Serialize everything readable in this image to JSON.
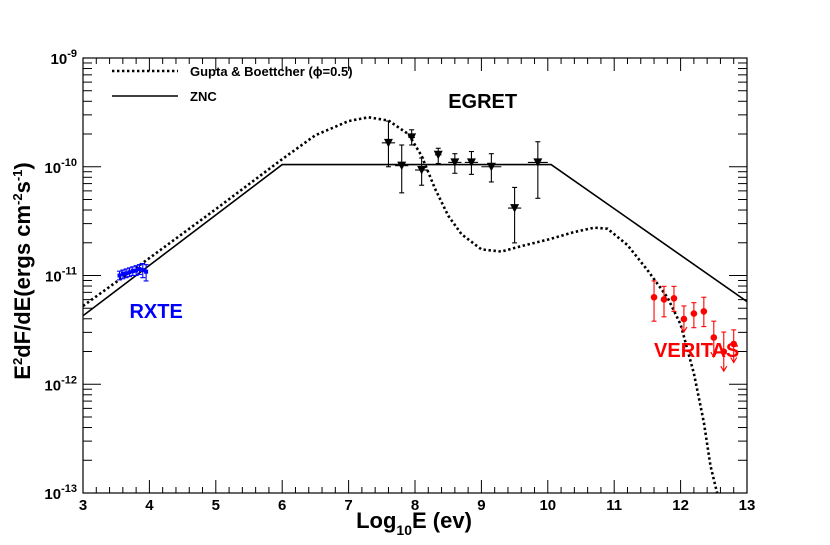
{
  "chart_data": {
    "type": "line",
    "title": "",
    "xlabel": {
      "base": "Log",
      "sub": "10",
      "rest": "E (ev)"
    },
    "ylabel": {
      "p1": "E",
      "sup1": "2",
      "p2": "dF/dE(ergs cm",
      "sup2": "-2",
      "p3": "s",
      "sup3": "-1",
      "p4": ")"
    },
    "xlim": [
      3,
      13
    ],
    "ylim_log10": [
      -13,
      -9
    ],
    "xticks": [
      3,
      4,
      5,
      6,
      7,
      8,
      9,
      10,
      11,
      12,
      13
    ],
    "xtick_labels": [
      "3",
      "4",
      "5",
      "6",
      "7",
      "8",
      "9",
      "10",
      "11",
      "12",
      "13"
    ],
    "yticks_log10": [
      -13,
      -12,
      -11,
      -10,
      -9
    ],
    "ytick_labels": [
      {
        "base": "10",
        "exp": "-13"
      },
      {
        "base": "10",
        "exp": "-12"
      },
      {
        "base": "10",
        "exp": "-11"
      },
      {
        "base": "10",
        "exp": "-10"
      },
      {
        "base": "10",
        "exp": "-9"
      }
    ],
    "legend": {
      "position": "top-left",
      "entries": [
        {
          "label": "Gupta & Boettcher (ϕ=0.5)",
          "style": "dotted"
        },
        {
          "label": "ZNC",
          "style": "solid"
        }
      ]
    },
    "series": [
      {
        "name": "Gupta & Boettcher (ϕ=0.5)",
        "style": "dotted",
        "color": "#000000",
        "points": [
          [
            3.0,
            -11.28
          ],
          [
            4.0,
            -10.84
          ],
          [
            5.0,
            -10.39
          ],
          [
            6.0,
            -9.93
          ],
          [
            6.5,
            -9.71
          ],
          [
            7.0,
            -9.58
          ],
          [
            7.3,
            -9.545
          ],
          [
            7.6,
            -9.575
          ],
          [
            7.9,
            -9.7
          ],
          [
            8.1,
            -9.9
          ],
          [
            8.3,
            -10.2
          ],
          [
            8.5,
            -10.45
          ],
          [
            8.7,
            -10.62
          ],
          [
            9.0,
            -10.76
          ],
          [
            9.3,
            -10.78
          ],
          [
            9.6,
            -10.73
          ],
          [
            10.0,
            -10.67
          ],
          [
            10.4,
            -10.6
          ],
          [
            10.7,
            -10.56
          ],
          [
            10.9,
            -10.57
          ],
          [
            11.2,
            -10.72
          ],
          [
            11.5,
            -10.95
          ],
          [
            11.8,
            -11.2
          ],
          [
            12.0,
            -11.45
          ],
          [
            12.2,
            -11.9
          ],
          [
            12.35,
            -12.35
          ],
          [
            12.45,
            -12.75
          ],
          [
            12.55,
            -13.0
          ]
        ]
      },
      {
        "name": "ZNC",
        "style": "solid",
        "color": "#000000",
        "points": [
          [
            3.0,
            -11.37
          ],
          [
            6.0,
            -9.98
          ],
          [
            10.05,
            -9.98
          ],
          [
            13.0,
            -11.24
          ]
        ]
      }
    ],
    "datasets": [
      {
        "name": "RXTE",
        "color": "#0000ff",
        "label_at": [
          3.7,
          -11.39
        ],
        "points": [
          {
            "x": 3.55,
            "y": -11.0,
            "ylo": -11.04,
            "yhi": -10.96
          },
          {
            "x": 3.6,
            "y": -10.985,
            "ylo": -11.03,
            "yhi": -10.95
          },
          {
            "x": 3.65,
            "y": -10.98,
            "ylo": -11.02,
            "yhi": -10.94
          },
          {
            "x": 3.7,
            "y": -10.97,
            "ylo": -11.01,
            "yhi": -10.93
          },
          {
            "x": 3.75,
            "y": -10.96,
            "ylo": -11.0,
            "yhi": -10.92
          },
          {
            "x": 3.8,
            "y": -10.955,
            "ylo": -11.0,
            "yhi": -10.91
          },
          {
            "x": 3.85,
            "y": -10.94,
            "ylo": -10.99,
            "yhi": -10.9
          },
          {
            "x": 3.9,
            "y": -10.95,
            "ylo": -11.02,
            "yhi": -10.89
          },
          {
            "x": 3.95,
            "y": -10.965,
            "ylo": -11.05,
            "yhi": -10.9
          }
        ]
      },
      {
        "name": "EGRET",
        "color": "#000000",
        "label_at": [
          8.5,
          -9.46
        ],
        "points": [
          {
            "x": 7.6,
            "y": -9.78,
            "ylo": -10.0,
            "yhi": -9.58,
            "xlo": 7.5,
            "xhi": 7.7
          },
          {
            "x": 7.8,
            "y": -9.99,
            "ylo": -10.24,
            "yhi": -9.8,
            "xlo": 7.7,
            "xhi": 7.9
          },
          {
            "x": 7.95,
            "y": -9.73,
            "ylo": -9.8,
            "yhi": -9.66,
            "xlo": 7.9,
            "xhi": 8.0
          },
          {
            "x": 8.1,
            "y": -10.03,
            "ylo": -10.17,
            "yhi": -9.92,
            "xlo": 8.0,
            "xhi": 8.2
          },
          {
            "x": 8.35,
            "y": -9.89,
            "ylo": -9.97,
            "yhi": -9.83,
            "xlo": 8.3,
            "xhi": 8.4
          },
          {
            "x": 8.6,
            "y": -9.96,
            "ylo": -10.06,
            "yhi": -9.88,
            "xlo": 8.5,
            "xhi": 8.7
          },
          {
            "x": 8.85,
            "y": -9.96,
            "ylo": -10.07,
            "yhi": -9.86,
            "xlo": 8.75,
            "xhi": 8.95
          },
          {
            "x": 9.15,
            "y": -10.0,
            "ylo": -10.14,
            "yhi": -9.88,
            "xlo": 9.0,
            "xhi": 9.3
          },
          {
            "x": 9.5,
            "y": -10.38,
            "ylo": -10.7,
            "yhi": -10.19,
            "xlo": 9.4,
            "xhi": 9.6
          },
          {
            "x": 9.85,
            "y": -9.96,
            "ylo": -10.29,
            "yhi": -9.77,
            "xlo": 9.7,
            "xhi": 10.0
          }
        ]
      },
      {
        "name": "VERITAS",
        "color": "#ff0000",
        "label_at": [
          11.6,
          -11.75
        ],
        "points": [
          {
            "x": 11.6,
            "y": -11.2,
            "ylo": -11.42,
            "yhi": -11.05
          },
          {
            "x": 11.75,
            "y": -11.22,
            "ylo": -11.38,
            "yhi": -11.1
          },
          {
            "x": 11.9,
            "y": -11.21,
            "ylo": -11.33,
            "yhi": -11.1
          },
          {
            "x": 12.05,
            "y": -11.4,
            "ylo": -11.52,
            "yhi": -11.28,
            "upper_limit": true
          },
          {
            "x": 12.2,
            "y": -11.35,
            "ylo": -11.48,
            "yhi": -11.25
          },
          {
            "x": 12.35,
            "y": -11.33,
            "ylo": -11.47,
            "yhi": -11.2
          },
          {
            "x": 12.5,
            "y": -11.57,
            "ylo": -11.75,
            "yhi": -11.42,
            "upper_limit": true
          },
          {
            "x": 12.65,
            "y": -11.7,
            "ylo": -11.88,
            "yhi": -11.52,
            "upper_limit": true
          },
          {
            "x": 12.8,
            "y": -11.63,
            "ylo": -11.8,
            "yhi": -11.5,
            "upper_limit": true
          }
        ]
      }
    ]
  }
}
